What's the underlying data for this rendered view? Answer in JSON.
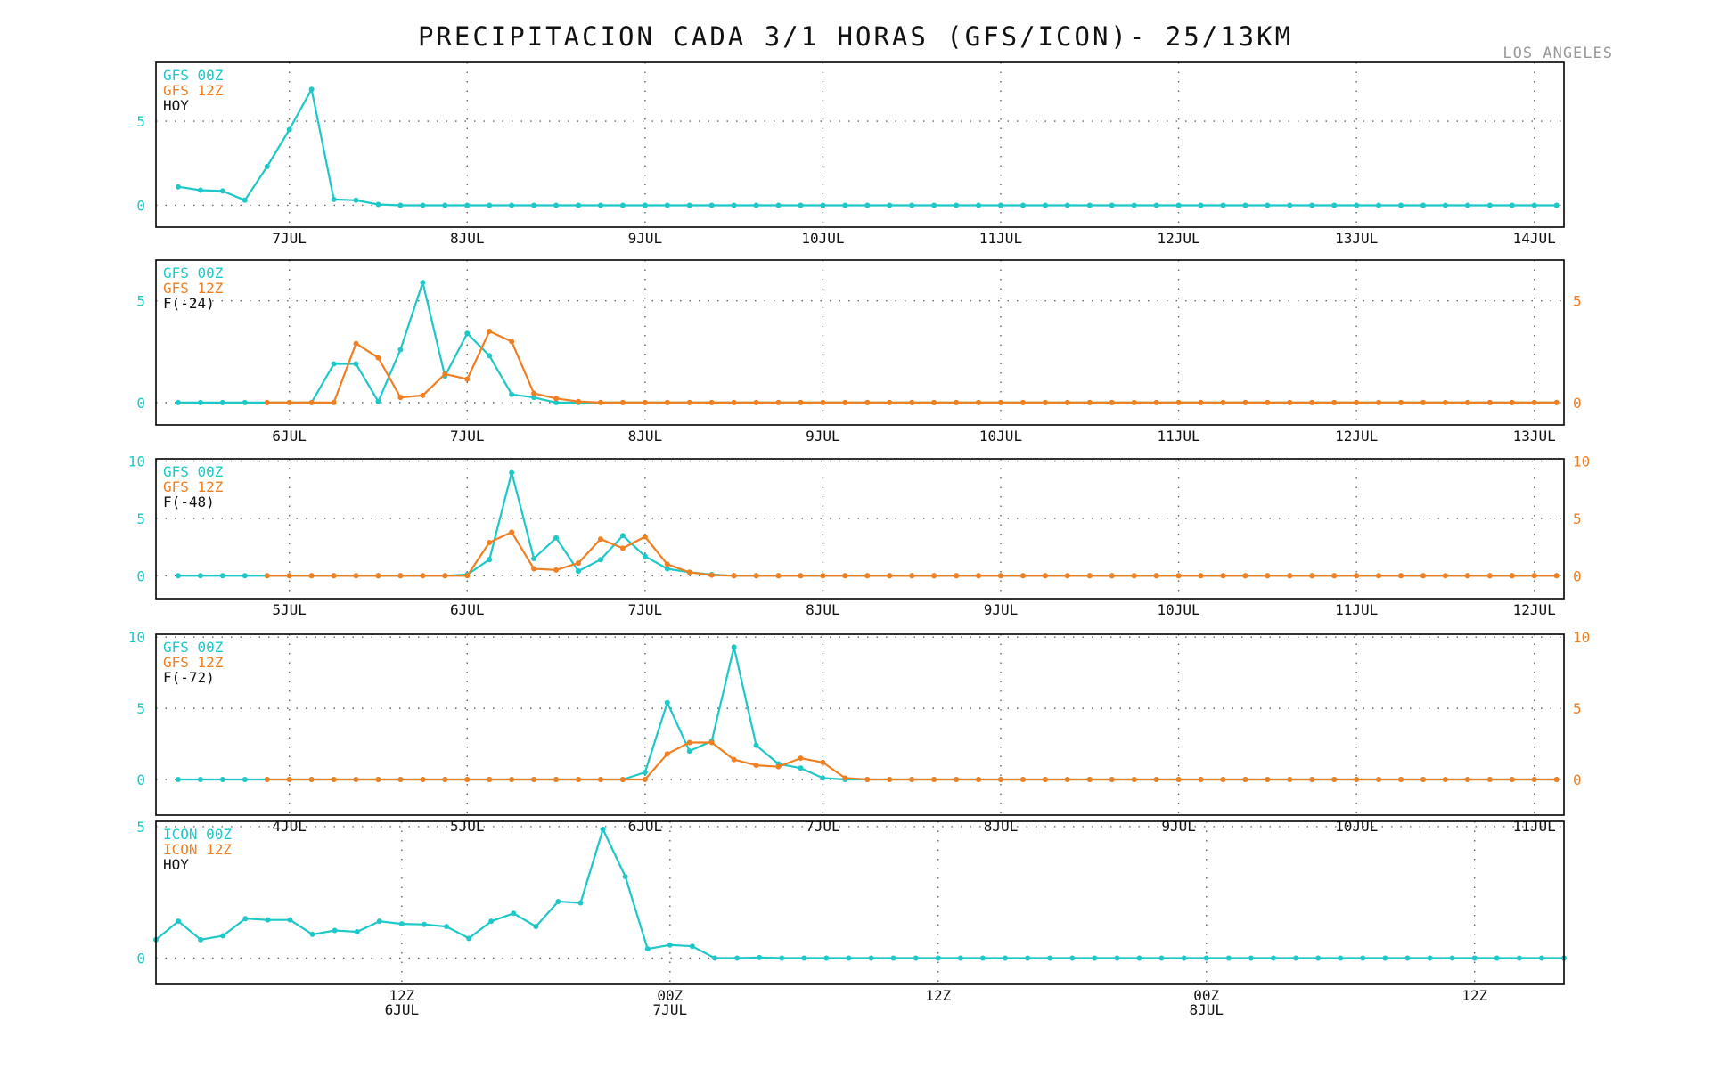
{
  "title": "PRECIPITACION CADA 3/1 HORAS (GFS/ICON)- 25/13KM",
  "location": "LOS ANGELES",
  "colors": {
    "run_00z": "#1ec8c8",
    "run_12z": "#f07f22",
    "label": "#111111"
  },
  "chart_data": [
    {
      "type": "line",
      "legend": [
        "GFS 00Z",
        "GFS 12Z",
        "HOY"
      ],
      "x_unit": "hours from 6JUL 06Z",
      "xlim": [
        0,
        190
      ],
      "ylim": [
        -1.3,
        8.5
      ],
      "yticks": [
        0,
        5
      ],
      "right_axis": false,
      "x_ticks": [
        {
          "x": 18,
          "label": "7JUL"
        },
        {
          "x": 42,
          "label": "8JUL"
        },
        {
          "x": 66,
          "label": "9JUL"
        },
        {
          "x": 90,
          "label": "10JUL"
        },
        {
          "x": 114,
          "label": "11JUL"
        },
        {
          "x": 138,
          "label": "12JUL"
        },
        {
          "x": 162,
          "label": "13JUL"
        },
        {
          "x": 186,
          "label": "14JUL"
        }
      ],
      "series": [
        {
          "name": "GFS 00Z",
          "color_key": "run_00z",
          "x_start": 3,
          "x_step": 3,
          "values": [
            1.1,
            0.9,
            0.85,
            0.3,
            2.3,
            4.5,
            6.9,
            0.35,
            0.3,
            0.05,
            0,
            0,
            0,
            0,
            0,
            0,
            0,
            0,
            0,
            0,
            0,
            0,
            0,
            0,
            0,
            0,
            0,
            0,
            0,
            0,
            0,
            0,
            0,
            0,
            0,
            0,
            0,
            0,
            0,
            0,
            0,
            0,
            0,
            0,
            0,
            0,
            0,
            0,
            0,
            0,
            0,
            0,
            0,
            0,
            0,
            0,
            0,
            0,
            0,
            0,
            0,
            0,
            0
          ]
        }
      ]
    },
    {
      "type": "line",
      "legend": [
        "GFS 00Z",
        "GFS 12Z",
        "F(-24)"
      ],
      "x_unit": "hours from 5JUL 06Z",
      "xlim": [
        0,
        190
      ],
      "ylim": [
        -1.1,
        7.0
      ],
      "yticks": [
        0,
        5
      ],
      "right_axis": true,
      "x_ticks": [
        {
          "x": 18,
          "label": "6JUL"
        },
        {
          "x": 42,
          "label": "7JUL"
        },
        {
          "x": 66,
          "label": "8JUL"
        },
        {
          "x": 90,
          "label": "9JUL"
        },
        {
          "x": 114,
          "label": "10JUL"
        },
        {
          "x": 138,
          "label": "11JUL"
        },
        {
          "x": 162,
          "label": "12JUL"
        },
        {
          "x": 186,
          "label": "13JUL"
        }
      ],
      "series": [
        {
          "name": "GFS 00Z",
          "color_key": "run_00z",
          "x_start": 3,
          "x_step": 3,
          "values": [
            0,
            0,
            0,
            0,
            0,
            0,
            0,
            1.9,
            1.9,
            0.05,
            2.6,
            5.9,
            1.3,
            3.4,
            2.3,
            0.4,
            0.25,
            0,
            0,
            0,
            0,
            0,
            0,
            0,
            0,
            0,
            0,
            0,
            0,
            0,
            0,
            0,
            0,
            0,
            0,
            0,
            0,
            0,
            0,
            0,
            0,
            0,
            0,
            0,
            0,
            0,
            0,
            0,
            0,
            0,
            0,
            0,
            0,
            0,
            0,
            0,
            0,
            0,
            0,
            0,
            0,
            0,
            0
          ]
        },
        {
          "name": "GFS 12Z",
          "color_key": "run_12z",
          "x_start": 15,
          "x_step": 3,
          "values": [
            0,
            0,
            0,
            0,
            2.9,
            2.2,
            0.25,
            0.35,
            1.4,
            1.15,
            3.5,
            3.0,
            0.45,
            0.2,
            0.05,
            0,
            0,
            0,
            0,
            0,
            0,
            0,
            0,
            0,
            0,
            0,
            0,
            0,
            0,
            0,
            0,
            0,
            0,
            0,
            0,
            0,
            0,
            0,
            0,
            0,
            0,
            0,
            0,
            0,
            0,
            0,
            0,
            0,
            0,
            0,
            0,
            0,
            0,
            0,
            0,
            0,
            0,
            0,
            0
          ]
        }
      ]
    },
    {
      "type": "line",
      "legend": [
        "GFS 00Z",
        "GFS 12Z",
        "F(-48)"
      ],
      "x_unit": "hours from 4JUL 06Z",
      "xlim": [
        0,
        190
      ],
      "ylim": [
        -2.0,
        10.2
      ],
      "yticks": [
        0,
        5,
        10
      ],
      "right_axis": true,
      "x_ticks": [
        {
          "x": 18,
          "label": "5JUL"
        },
        {
          "x": 42,
          "label": "6JUL"
        },
        {
          "x": 66,
          "label": "7JUL"
        },
        {
          "x": 90,
          "label": "8JUL"
        },
        {
          "x": 114,
          "label": "9JUL"
        },
        {
          "x": 138,
          "label": "10JUL"
        },
        {
          "x": 162,
          "label": "11JUL"
        },
        {
          "x": 186,
          "label": "12JUL"
        }
      ],
      "series": [
        {
          "name": "GFS 00Z",
          "color_key": "run_00z",
          "x_start": 3,
          "x_step": 3,
          "values": [
            0,
            0,
            0,
            0,
            0,
            0,
            0,
            0,
            0,
            0,
            0,
            0,
            0,
            0.1,
            1.4,
            9.0,
            1.5,
            3.3,
            0.4,
            1.4,
            3.5,
            1.7,
            0.6,
            0.3,
            0.1,
            0,
            0,
            0,
            0,
            0,
            0,
            0,
            0,
            0,
            0,
            0,
            0,
            0,
            0,
            0,
            0,
            0,
            0,
            0,
            0,
            0,
            0,
            0,
            0,
            0,
            0,
            0,
            0,
            0,
            0,
            0,
            0,
            0,
            0,
            0,
            0,
            0,
            0
          ]
        },
        {
          "name": "GFS 12Z",
          "color_key": "run_12z",
          "x_start": 15,
          "x_step": 3,
          "values": [
            0,
            0,
            0,
            0,
            0,
            0,
            0,
            0,
            0,
            0,
            2.9,
            3.8,
            0.6,
            0.5,
            1.1,
            3.2,
            2.4,
            3.4,
            1.0,
            0.3,
            0.05,
            0,
            0,
            0,
            0,
            0,
            0,
            0,
            0,
            0,
            0,
            0,
            0,
            0,
            0,
            0,
            0,
            0,
            0,
            0,
            0,
            0,
            0,
            0,
            0,
            0,
            0,
            0,
            0,
            0,
            0,
            0,
            0,
            0,
            0,
            0,
            0,
            0,
            0
          ]
        }
      ]
    },
    {
      "type": "line",
      "legend": [
        "GFS 00Z",
        "GFS 12Z",
        "F(-72)"
      ],
      "x_unit": "hours from 3JUL 06Z",
      "xlim": [
        0,
        190
      ],
      "ylim": [
        -2.5,
        10.2
      ],
      "yticks": [
        0,
        5,
        10
      ],
      "right_axis": true,
      "x_ticks": [
        {
          "x": 18,
          "label": "4JUL"
        },
        {
          "x": 42,
          "label": "5JUL"
        },
        {
          "x": 66,
          "label": "6JUL"
        },
        {
          "x": 90,
          "label": "7JUL"
        },
        {
          "x": 114,
          "label": "8JUL"
        },
        {
          "x": 138,
          "label": "9JUL"
        },
        {
          "x": 162,
          "label": "10JUL"
        },
        {
          "x": 186,
          "label": "11JUL"
        }
      ],
      "series": [
        {
          "name": "GFS 00Z",
          "color_key": "run_00z",
          "x_start": 3,
          "x_step": 3,
          "values": [
            0,
            0,
            0,
            0,
            0,
            0,
            0,
            0,
            0,
            0,
            0,
            0,
            0,
            0,
            0,
            0,
            0,
            0,
            0,
            0,
            0,
            0.5,
            5.4,
            2.0,
            2.7,
            9.3,
            2.4,
            1.1,
            0.8,
            0.1,
            0,
            0,
            0,
            0,
            0,
            0,
            0,
            0,
            0,
            0,
            0,
            0,
            0,
            0,
            0,
            0,
            0,
            0,
            0,
            0,
            0,
            0,
            0,
            0,
            0,
            0,
            0,
            0,
            0,
            0,
            0,
            0,
            0
          ]
        },
        {
          "name": "GFS 12Z",
          "color_key": "run_12z",
          "x_start": 15,
          "x_step": 3,
          "values": [
            0,
            0,
            0,
            0,
            0,
            0,
            0,
            0,
            0,
            0,
            0,
            0,
            0,
            0,
            0,
            0,
            0,
            0,
            1.8,
            2.6,
            2.6,
            1.4,
            1.0,
            0.9,
            1.5,
            1.2,
            0.1,
            0,
            0,
            0,
            0,
            0,
            0,
            0,
            0,
            0,
            0,
            0,
            0,
            0,
            0,
            0,
            0,
            0,
            0,
            0,
            0,
            0,
            0,
            0,
            0,
            0,
            0,
            0,
            0,
            0,
            0,
            0,
            0
          ]
        }
      ]
    },
    {
      "type": "line",
      "legend": [
        "ICON 00Z",
        "ICON 12Z",
        "HOY"
      ],
      "x_unit": "hours from 6JUL 01Z",
      "xlim": [
        0,
        63
      ],
      "ylim": [
        -1.0,
        5.2
      ],
      "yticks": [
        0,
        5
      ],
      "right_axis": false,
      "x_ticks": [
        {
          "x": 11,
          "label": "12Z",
          "sub": "6JUL"
        },
        {
          "x": 23,
          "label": "00Z",
          "sub": "7JUL"
        },
        {
          "x": 35,
          "label": "12Z",
          "sub": ""
        },
        {
          "x": 47,
          "label": "00Z",
          "sub": "8JUL"
        },
        {
          "x": 59,
          "label": "12Z",
          "sub": ""
        }
      ],
      "series": [
        {
          "name": "ICON 00Z",
          "color_key": "run_00z",
          "x_start": 0,
          "x_step": 1,
          "values": [
            0.7,
            1.4,
            0.7,
            0.85,
            1.5,
            1.45,
            1.45,
            0.9,
            1.05,
            1.0,
            1.4,
            1.3,
            1.28,
            1.2,
            0.75,
            1.4,
            1.7,
            1.2,
            2.15,
            2.1,
            4.9,
            3.1,
            0.35,
            0.5,
            0.45,
            0,
            0,
            0.02,
            0,
            0,
            0,
            0,
            0,
            0,
            0,
            0,
            0,
            0,
            0,
            0,
            0,
            0,
            0,
            0,
            0,
            0,
            0,
            0,
            0,
            0,
            0,
            0,
            0,
            0,
            0,
            0,
            0,
            0,
            0,
            0,
            0,
            0,
            0,
            0
          ]
        }
      ]
    }
  ]
}
